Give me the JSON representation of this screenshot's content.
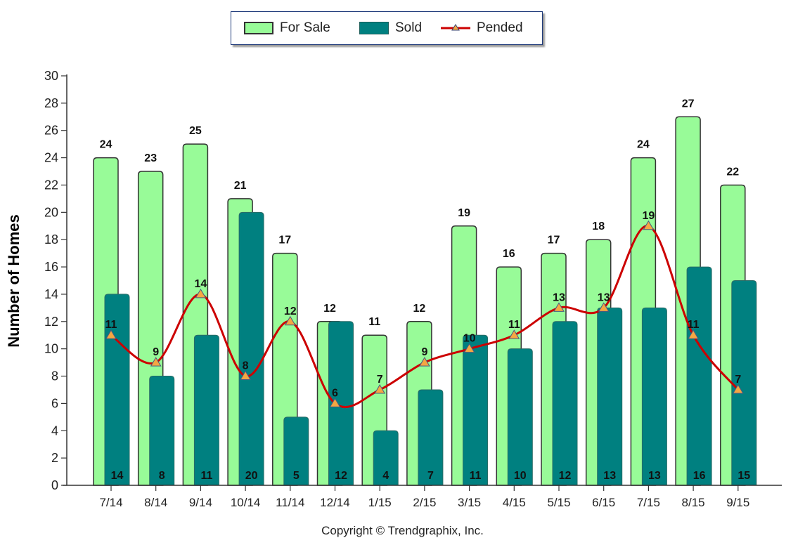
{
  "legend": {
    "items": [
      {
        "label": "For Sale",
        "type": "bar",
        "color": "#98fb98"
      },
      {
        "label": "Sold",
        "type": "bar",
        "color": "#008080"
      },
      {
        "label": "Pended",
        "type": "line",
        "color": "#cc0000",
        "marker_color": "#f5a742"
      }
    ]
  },
  "copyright": "Copyright © Trendgraphix, Inc.",
  "chart_data": {
    "type": "bar",
    "title": "",
    "xlabel": "",
    "ylabel": "Number of Homes",
    "ylim": [
      0,
      30
    ],
    "yticks": [
      0,
      2,
      4,
      6,
      8,
      10,
      12,
      14,
      16,
      18,
      20,
      22,
      24,
      26,
      28,
      30
    ],
    "grid": false,
    "legend_position": "top-center",
    "categories": [
      "7/14",
      "8/14",
      "9/14",
      "10/14",
      "11/14",
      "12/14",
      "1/15",
      "2/15",
      "3/15",
      "4/15",
      "5/15",
      "6/15",
      "7/15",
      "8/15",
      "9/15"
    ],
    "series": [
      {
        "name": "For Sale",
        "type": "bar",
        "color": "#98fb98",
        "values": [
          24,
          23,
          25,
          21,
          17,
          12,
          11,
          12,
          19,
          16,
          17,
          18,
          24,
          27,
          22
        ]
      },
      {
        "name": "Sold",
        "type": "bar",
        "color": "#008080",
        "values": [
          14,
          8,
          11,
          20,
          5,
          12,
          4,
          7,
          11,
          10,
          12,
          13,
          13,
          16,
          15
        ]
      },
      {
        "name": "Pended",
        "type": "line",
        "color": "#cc0000",
        "marker": "triangle",
        "marker_color": "#f5a742",
        "values": [
          11,
          9,
          14,
          8,
          12,
          6,
          7,
          9,
          10,
          11,
          13,
          13,
          19,
          11,
          7
        ]
      }
    ]
  }
}
